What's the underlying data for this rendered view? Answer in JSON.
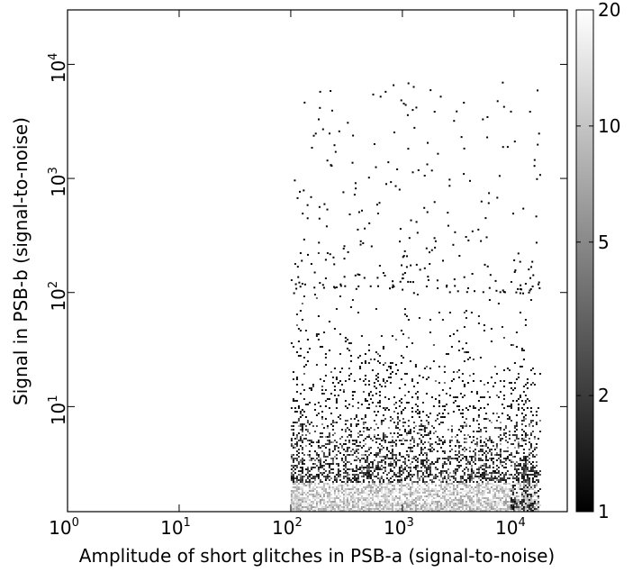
{
  "chart_data": {
    "type": "heatmap",
    "title": "",
    "xlabel": "Amplitude of short glitches in PSB-a (signal-to-noise)",
    "ylabel": "Signal in PSB-b (signal-to-noise)",
    "x_scale": "log",
    "y_scale": "log",
    "xlim": [
      1,
      30000
    ],
    "ylim": [
      1.2,
      30000
    ],
    "x_ticks": [
      {
        "value": 1,
        "base": "10",
        "exp": "0"
      },
      {
        "value": 10,
        "base": "10",
        "exp": "1"
      },
      {
        "value": 100,
        "base": "10",
        "exp": "2"
      },
      {
        "value": 1000,
        "base": "10",
        "exp": "3"
      },
      {
        "value": 10000,
        "base": "10",
        "exp": "4"
      }
    ],
    "y_ticks": [
      {
        "value": 10,
        "base": "10",
        "exp": "1"
      },
      {
        "value": 100,
        "base": "10",
        "exp": "2"
      },
      {
        "value": 1000,
        "base": "10",
        "exp": "3"
      },
      {
        "value": 10000,
        "base": "10",
        "exp": "4"
      }
    ],
    "colorbar": {
      "scale": "log",
      "range": [
        1,
        20
      ],
      "colormap": "gray",
      "ticks": [
        {
          "value": 1,
          "label": "1"
        },
        {
          "value": 2,
          "label": "2"
        },
        {
          "value": 5,
          "label": "5"
        },
        {
          "value": 10,
          "label": "10"
        },
        {
          "value": 20,
          "label": "20"
        }
      ]
    },
    "data_extent": {
      "x_min": 100,
      "x_max": 17000,
      "y_max": 7500
    },
    "density_regions": [
      {
        "x_range": [
          100,
          16000
        ],
        "y_range": [
          1.2,
          2.5
        ],
        "counts": "high (10-20)"
      },
      {
        "x_range": [
          100,
          16000
        ],
        "y_range": [
          2.5,
          15
        ],
        "counts": "medium (2-5)"
      },
      {
        "x_range": [
          100,
          16000
        ],
        "y_range": [
          15,
          100
        ],
        "counts": "low (1-2)"
      },
      {
        "x_range": [
          100,
          16000
        ],
        "y_range": [
          100,
          7500
        ],
        "counts": "sparse (1)"
      }
    ],
    "grid": false
  }
}
